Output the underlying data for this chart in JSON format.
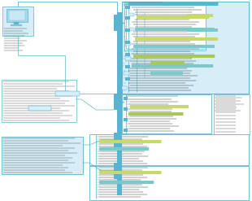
{
  "background_color": "#ffffff",
  "primary_color": "#5ab4cf",
  "border_color": "#5ab4cf",
  "light_fill": "#d6eef7",
  "white_fill": "#ffffff",
  "text_dark": "#444444",
  "text_blue": "#3a8ab0",
  "green_highlight": "#c8d96a",
  "teal_highlight": "#7dc9c9",
  "green2_highlight": "#a8c85a",
  "blue_tag": "#5ab4cf",
  "pink_tag": "#e8a0a0",
  "figsize": [
    3.1,
    2.47
  ],
  "dpi": 100
}
